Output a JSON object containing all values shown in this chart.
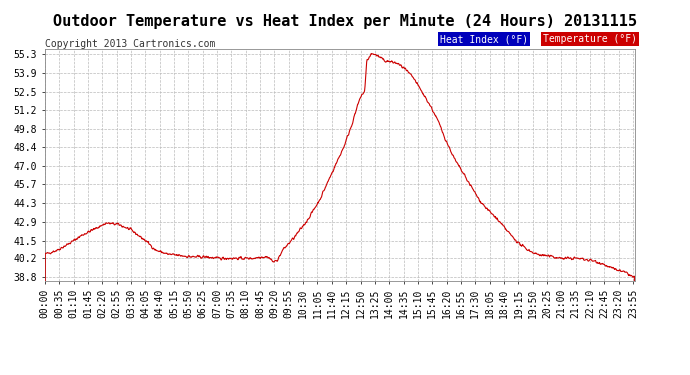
{
  "title": "Outdoor Temperature vs Heat Index per Minute (24 Hours) 20131115",
  "copyright": "Copyright 2013 Cartronics.com",
  "legend_items": [
    {
      "label": "Heat Index (°F)",
      "bg": "#0000bb",
      "fg": "#ffffff"
    },
    {
      "label": "Temperature (°F)",
      "bg": "#cc0000",
      "fg": "#ffffff"
    }
  ],
  "line_color": "#cc0000",
  "background_color": "#ffffff",
  "plot_bg_color": "#ffffff",
  "grid_color": "#bbbbbb",
  "ylim": [
    38.5,
    55.7
  ],
  "yticks": [
    38.8,
    40.2,
    41.5,
    42.9,
    44.3,
    45.7,
    47.0,
    48.4,
    49.8,
    51.2,
    52.5,
    53.9,
    55.3
  ],
  "title_fontsize": 11,
  "copyright_fontsize": 7,
  "tick_label_fontsize": 7,
  "num_minutes": 1440,
  "x_tick_interval": 35
}
